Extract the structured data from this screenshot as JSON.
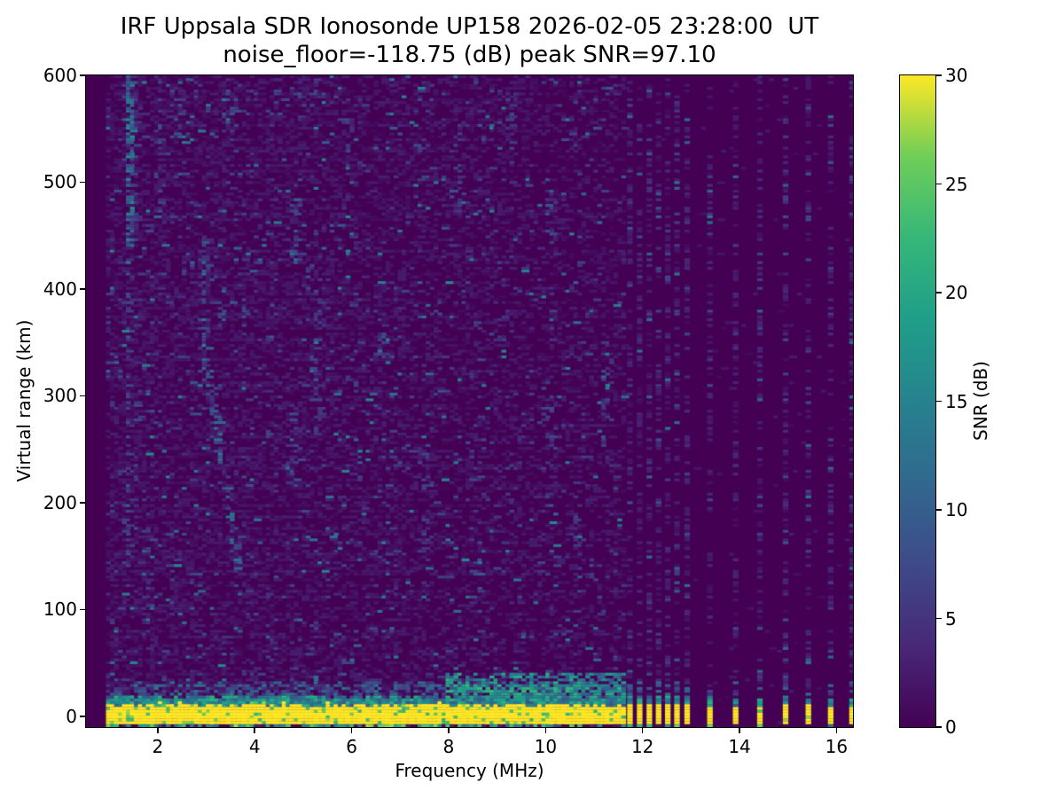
{
  "figure": {
    "background": "#ffffff",
    "text_color": "#000000"
  },
  "chart_data": {
    "type": "heatmap",
    "title_line1": "IRF Uppsala SDR Ionosonde UP158 2026-02-05 23:28:00  UT",
    "title_line2": "noise_floor=-118.75 (dB) peak SNR=97.10",
    "xlabel": "Frequency (MHz)",
    "ylabel": "Virtual range (km)",
    "xlim": [
      0.52,
      16.34
    ],
    "ylim": [
      -10,
      600
    ],
    "x_ticks": [
      2,
      4,
      6,
      8,
      10,
      12,
      14,
      16
    ],
    "y_ticks": [
      0,
      100,
      200,
      300,
      400,
      500,
      600
    ],
    "grid": false,
    "noise_floor_db": -118.75,
    "peak_snr_db": 97.1,
    "colorbar": {
      "label": "SNR (dB)",
      "ticks": [
        0,
        5,
        10,
        15,
        20,
        25,
        30
      ],
      "vmin": 0,
      "vmax": 30,
      "colormap": "viridis",
      "position": "right"
    },
    "colormap_stops": [
      "#440154",
      "#482878",
      "#3e4a89",
      "#31688e",
      "#26828e",
      "#1f9e89",
      "#35b779",
      "#6ece58",
      "#fde725"
    ],
    "render": {
      "seed": 1337,
      "grid_cols": 192,
      "grid_rows": 228,
      "blank_below_mhz": 0.95,
      "continuous_sweep_max_mhz": 11.63,
      "discrete_freqs_mhz": [
        11.74,
        11.94,
        12.14,
        12.33,
        12.52,
        12.71,
        12.92,
        13.39,
        13.92,
        14.42,
        14.95,
        15.42,
        15.88,
        16.32
      ],
      "ground_band_km": [
        -7.5,
        10.5
      ],
      "ground_fringe_km": 8,
      "enhanced_scatter_mhz": [
        7.9,
        11.63
      ],
      "enhanced_scatter_top_km": 42,
      "speckle_density_left": 1.0,
      "speckle_density_falloff_per_mhz": 0.055,
      "rfi_streaks": [
        {
          "f": 1.45,
          "km": [
            440,
            600
          ],
          "s": 1.0
        },
        {
          "f": 1.38,
          "km": [
            140,
            430
          ],
          "s": 0.45
        },
        {
          "f": 1.8,
          "km": [
            60,
            200
          ],
          "s": 0.35
        },
        {
          "f": 2.05,
          "km": [
            470,
            600
          ],
          "s": 0.4
        },
        {
          "f": 2.4,
          "km": [
            540,
            600
          ],
          "s": 0.55
        },
        {
          "f": 2.95,
          "km": [
            330,
            450
          ],
          "s": 0.85
        },
        {
          "f": 3.0,
          "f1": 3.7,
          "km": [
            130,
            330
          ],
          "s": 0.75
        },
        {
          "f": 3.5,
          "km": [
            545,
            600
          ],
          "s": 0.5
        },
        {
          "f": 4.5,
          "km": [
            555,
            600
          ],
          "s": 0.5
        },
        {
          "f": 4.82,
          "km": [
            420,
            485
          ],
          "s": 0.65
        },
        {
          "f": 4.82,
          "km": [
            215,
            300
          ],
          "s": 0.4
        },
        {
          "f": 5.3,
          "km": [
            250,
            460
          ],
          "s": 0.3
        },
        {
          "f": 5.9,
          "km": [
            480,
            560
          ],
          "s": 0.3
        },
        {
          "f": 6.6,
          "km": [
            300,
            385
          ],
          "s": 0.25
        },
        {
          "f": 7.5,
          "km": [
            150,
            260
          ],
          "s": 0.3
        },
        {
          "f": 8.2,
          "km": [
            470,
            555
          ],
          "s": 0.3
        },
        {
          "f": 8.65,
          "km": [
            95,
            165
          ],
          "s": 0.45
        },
        {
          "f": 9.3,
          "km": [
            535,
            600
          ],
          "s": 0.4
        },
        {
          "f": 10.1,
          "km": [
            440,
            505
          ],
          "s": 0.5
        },
        {
          "f": 10.1,
          "km": [
            195,
            300
          ],
          "s": 0.35
        },
        {
          "f": 10.6,
          "km": [
            95,
            200
          ],
          "s": 0.3
        },
        {
          "f": 11.25,
          "km": [
            250,
            355
          ],
          "s": 0.3
        }
      ]
    }
  }
}
